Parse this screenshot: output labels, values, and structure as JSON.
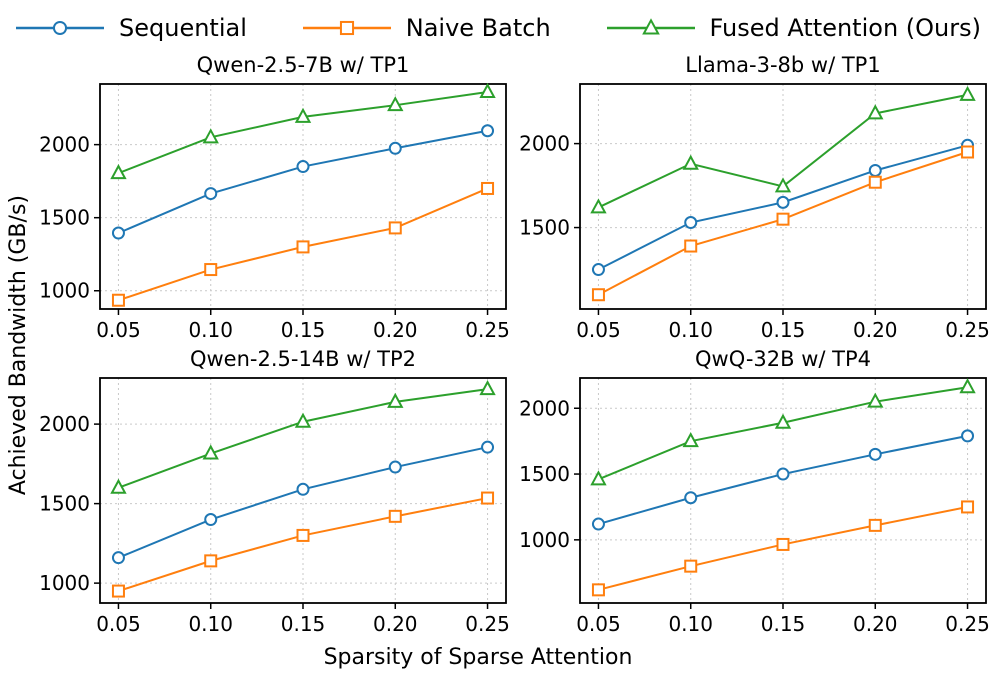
{
  "figure": {
    "ylabel": "Achieved Bandwidth (GB/s)",
    "xlabel": "Sparsity of Sparse Attention",
    "background": "#ffffff"
  },
  "legend": {
    "position": "top",
    "entries": [
      {
        "label": "Sequential",
        "color": "#1f77b4",
        "marker": "circle"
      },
      {
        "label": "Naive Batch",
        "color": "#ff7f0e",
        "marker": "square"
      },
      {
        "label": "Fused Attention (Ours)",
        "color": "#2ca02c",
        "marker": "triangle"
      }
    ]
  },
  "style": {
    "grid": true,
    "grid_color": "#c9c9c9",
    "spine_color": "#000000",
    "series_colors": {
      "blue": "#1f77b4",
      "orange": "#ff7f0e",
      "green": "#2ca02c"
    },
    "xlim": [
      0.04,
      0.26
    ],
    "xticks": [
      0.05,
      0.1,
      0.15,
      0.2,
      0.25
    ],
    "xtick_labels": [
      "0.05",
      "0.10",
      "0.15",
      "0.20",
      "0.25"
    ]
  },
  "chart_data": [
    {
      "type": "line",
      "title": "Qwen-2.5-7B w/ TP1",
      "x": [
        0.05,
        0.1,
        0.15,
        0.2,
        0.25
      ],
      "ylim": [
        875,
        2415
      ],
      "yticks": [
        1000,
        1500,
        2000
      ],
      "series": [
        {
          "name": "Sequential",
          "marker": "circle",
          "color": "#1f77b4",
          "values": [
            1395,
            1665,
            1850,
            1975,
            2095
          ]
        },
        {
          "name": "Naive Batch",
          "marker": "square",
          "color": "#ff7f0e",
          "values": [
            935,
            1145,
            1300,
            1430,
            1700
          ]
        },
        {
          "name": "Fused Attention (Ours)",
          "marker": "triangle",
          "color": "#2ca02c",
          "values": [
            1805,
            2050,
            2190,
            2270,
            2360
          ]
        }
      ]
    },
    {
      "type": "line",
      "title": "Llama-3-8b w/ TP1",
      "x": [
        0.05,
        0.1,
        0.15,
        0.2,
        0.25
      ],
      "ylim": [
        1015,
        2355
      ],
      "yticks": [
        1500,
        2000
      ],
      "series": [
        {
          "name": "Sequential",
          "marker": "circle",
          "color": "#1f77b4",
          "values": [
            1250,
            1530,
            1650,
            1840,
            1990
          ]
        },
        {
          "name": "Naive Batch",
          "marker": "square",
          "color": "#ff7f0e",
          "values": [
            1100,
            1390,
            1550,
            1770,
            1950
          ]
        },
        {
          "name": "Fused Attention (Ours)",
          "marker": "triangle",
          "color": "#2ca02c",
          "values": [
            1620,
            1880,
            1745,
            2180,
            2290
          ]
        }
      ]
    },
    {
      "type": "line",
      "title": "Qwen-2.5-14B w/ TP2",
      "x": [
        0.05,
        0.1,
        0.15,
        0.2,
        0.25
      ],
      "ylim": [
        875,
        2290
      ],
      "yticks": [
        1000,
        1500,
        2000
      ],
      "series": [
        {
          "name": "Sequential",
          "marker": "circle",
          "color": "#1f77b4",
          "values": [
            1160,
            1400,
            1590,
            1730,
            1855
          ]
        },
        {
          "name": "Naive Batch",
          "marker": "square",
          "color": "#ff7f0e",
          "values": [
            950,
            1140,
            1300,
            1420,
            1535
          ]
        },
        {
          "name": "Fused Attention (Ours)",
          "marker": "triangle",
          "color": "#2ca02c",
          "values": [
            1600,
            1815,
            2015,
            2140,
            2220
          ]
        }
      ]
    },
    {
      "type": "line",
      "title": "QwQ-32B w/ TP4",
      "x": [
        0.05,
        0.1,
        0.15,
        0.2,
        0.25
      ],
      "ylim": [
        520,
        2230
      ],
      "yticks": [
        1000,
        1500,
        2000
      ],
      "series": [
        {
          "name": "Sequential",
          "marker": "circle",
          "color": "#1f77b4",
          "values": [
            1120,
            1320,
            1500,
            1650,
            1790
          ]
        },
        {
          "name": "Naive Batch",
          "marker": "square",
          "color": "#ff7f0e",
          "values": [
            620,
            800,
            965,
            1110,
            1250
          ]
        },
        {
          "name": "Fused Attention (Ours)",
          "marker": "triangle",
          "color": "#2ca02c",
          "values": [
            1460,
            1750,
            1890,
            2050,
            2160
          ]
        }
      ]
    }
  ]
}
